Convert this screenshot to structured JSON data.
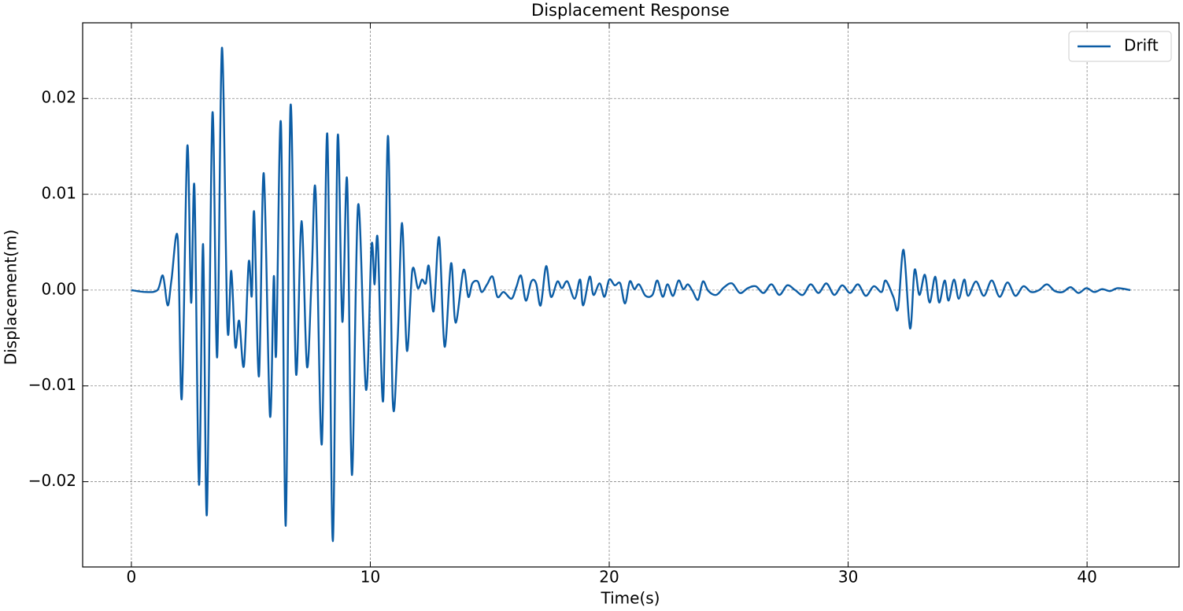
{
  "chart_data": {
    "type": "line",
    "title": "Displacement Response",
    "xlabel": "Time(s)",
    "ylabel": "Displacement(m)",
    "x": [
      0,
      0.59,
      1.09,
      1.32,
      1.52,
      1.68,
      1.94,
      2.11,
      2.34,
      2.5,
      2.64,
      2.83,
      3.0,
      3.16,
      3.39,
      3.59,
      3.79,
      4.02,
      4.18,
      4.35,
      4.51,
      4.71,
      4.91,
      5.04,
      5.14,
      5.34,
      5.54,
      5.8,
      5.96,
      6.06,
      6.26,
      6.46,
      6.66,
      6.89,
      7.12,
      7.35,
      7.55,
      7.71,
      7.97,
      8.2,
      8.43,
      8.63,
      8.83,
      9.03,
      9.23,
      9.49,
      9.82,
      10.05,
      10.18,
      10.31,
      10.54,
      10.74,
      10.94,
      11.14,
      11.33,
      11.53,
      11.76,
      11.99,
      12.16,
      12.32,
      12.45,
      12.65,
      12.88,
      13.11,
      13.38,
      13.57,
      13.9,
      14.1,
      14.27,
      14.5,
      14.66,
      14.89,
      15.12,
      15.32,
      15.58,
      15.91,
      16.11,
      16.31,
      16.51,
      16.74,
      16.94,
      17.13,
      17.36,
      17.56,
      17.83,
      18.02,
      18.25,
      18.55,
      18.78,
      18.91,
      19.18,
      19.34,
      19.6,
      19.8,
      20.0,
      20.23,
      20.46,
      20.66,
      20.86,
      21.05,
      21.25,
      21.52,
      21.81,
      22.01,
      22.24,
      22.44,
      22.67,
      22.9,
      23.1,
      23.29,
      23.49,
      23.72,
      23.92,
      24.15,
      24.48,
      24.81,
      25.14,
      25.47,
      25.8,
      26.13,
      26.46,
      26.79,
      27.12,
      27.45,
      27.78,
      28.11,
      28.43,
      28.76,
      29.09,
      29.42,
      29.75,
      30.08,
      30.41,
      30.74,
      31.07,
      31.4,
      31.57,
      31.89,
      32.09,
      32.32,
      32.59,
      32.78,
      32.98,
      33.21,
      33.41,
      33.64,
      33.81,
      34.04,
      34.2,
      34.43,
      34.63,
      34.86,
      35.02,
      35.35,
      35.68,
      36.01,
      36.34,
      36.67,
      37.0,
      37.33,
      37.66,
      37.99,
      38.32,
      38.65,
      38.98,
      39.31,
      39.64,
      39.97,
      40.3,
      40.63,
      40.96,
      41.29,
      41.81
    ],
    "series": [
      {
        "name": "Drift",
        "color": "#0c5da5",
        "values": [
          0,
          -0.0002,
          0,
          0.0015,
          -0.0016,
          0.0011,
          0.0054,
          -0.0113,
          0.015,
          -0.0013,
          0.0107,
          -0.0203,
          0.0048,
          -0.0234,
          0.0184,
          -0.007,
          0.0253,
          -0.0038,
          0.002,
          -0.0059,
          -0.0032,
          -0.0079,
          0.0029,
          -0.0006,
          0.0081,
          -0.009,
          0.0122,
          -0.0131,
          0.0014,
          -0.0066,
          0.0174,
          -0.0246,
          0.0192,
          -0.0087,
          0.0072,
          -0.008,
          0.0018,
          0.0103,
          -0.0161,
          0.0163,
          -0.0262,
          0.0158,
          -0.0033,
          0.0115,
          -0.0193,
          0.0089,
          -0.0104,
          0.0046,
          0.0006,
          0.0053,
          -0.0115,
          0.0161,
          -0.0116,
          -0.0055,
          0.007,
          -0.0063,
          0.0021,
          0.0002,
          0.0011,
          0.0007,
          0.0025,
          -0.0022,
          0.0055,
          -0.0059,
          0.0028,
          -0.0034,
          0.0021,
          -0.0007,
          0.0007,
          0.0009,
          -0.0002,
          0.0006,
          0.0014,
          -0.0007,
          -0.0002,
          -0.0009,
          0.0003,
          0.0015,
          -0.0011,
          0.0009,
          0.0007,
          -0.0016,
          0.0025,
          -0.0007,
          0.0009,
          0.0002,
          0.0009,
          -0.0009,
          0.0011,
          -0.0016,
          0.0014,
          -0.0005,
          0.0007,
          -0.0007,
          0.0011,
          0.0005,
          0.0007,
          -0.0014,
          0.0009,
          0.0001,
          0.0006,
          -0.0006,
          -0.0005,
          0.001,
          -0.0007,
          0.0006,
          -0.0006,
          0.001,
          0.0001,
          0.0006,
          -0.0001,
          -0.001,
          0.0009,
          -0.0001,
          -0.0005,
          0.0003,
          0.0007,
          -0.0003,
          0.0002,
          0.0004,
          -0.0003,
          0.0006,
          -0.0005,
          0.0005,
          0,
          -0.0005,
          0.0006,
          -0.0003,
          0.0007,
          -0.0005,
          0.0005,
          -0.0003,
          0.0006,
          -0.0006,
          0.0004,
          -0.0002,
          0.001,
          -0.0007,
          -0.0019,
          0.0042,
          -0.004,
          0.0021,
          -0.0005,
          0.0016,
          -0.0013,
          0.0014,
          -0.0013,
          0.001,
          -0.0011,
          0.0011,
          -0.0009,
          0.0011,
          -0.0006,
          0.0009,
          -0.0006,
          0.001,
          -0.0007,
          0.0008,
          -0.0006,
          0.0004,
          -0.0002,
          0,
          0.0006,
          -0.0001,
          -0.0002,
          0.0003,
          -0.0003,
          0.0002,
          -0.0002,
          0.0001,
          -0.0001,
          0.0002,
          0
        ]
      }
    ],
    "xlim": [
      -2.04,
      43.85
    ],
    "ylim": [
      -0.0289,
      0.0279
    ],
    "xticks": [
      0,
      10,
      20,
      30,
      40
    ],
    "yticks": [
      {
        "value": -0.02,
        "label": "−0.02"
      },
      {
        "value": -0.01,
        "label": "−0.01"
      },
      {
        "value": 0,
        "label": "0.00"
      },
      0.01,
      0.02
    ],
    "grid": true,
    "legend": "upper right"
  }
}
